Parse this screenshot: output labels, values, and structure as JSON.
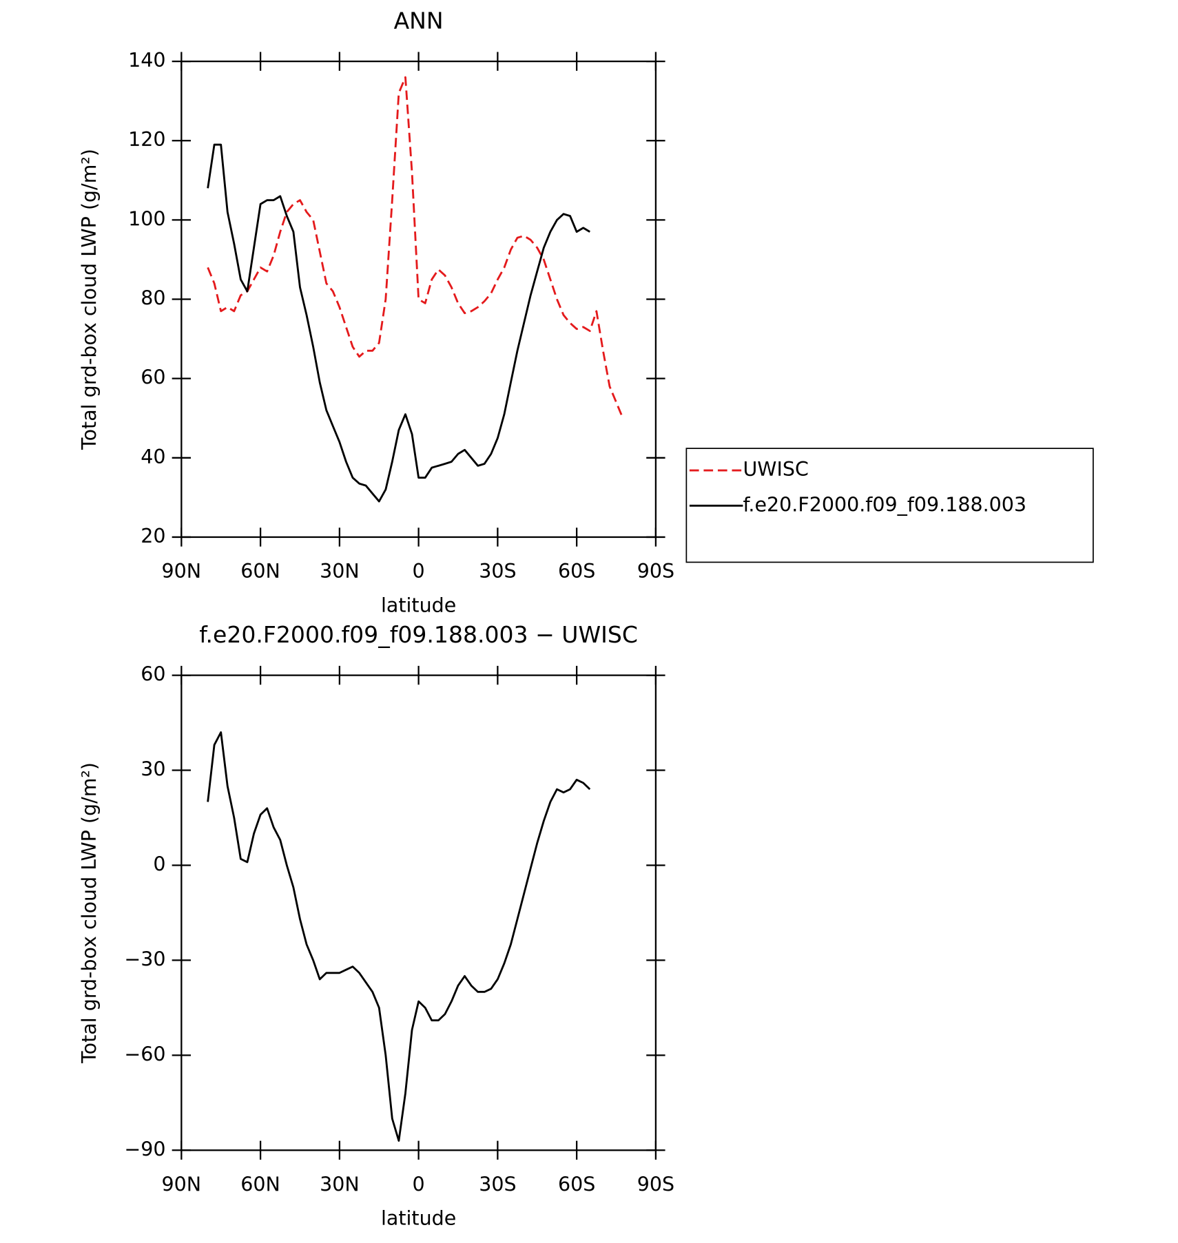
{
  "chart_data": [
    {
      "type": "line",
      "title": "ANN",
      "xlabel": "latitude",
      "ylabel": "Total grd-box cloud LWP (g/m²)",
      "xlim": [
        90,
        -90
      ],
      "ylim": [
        20,
        140
      ],
      "xticks": [
        {
          "value": 90,
          "label": "90N"
        },
        {
          "value": 60,
          "label": "60N"
        },
        {
          "value": 30,
          "label": "30N"
        },
        0,
        {
          "value": -30,
          "label": "30S"
        },
        {
          "value": -60,
          "label": "60S"
        },
        {
          "value": -90,
          "label": "90S"
        }
      ],
      "yticks": [
        20,
        40,
        60,
        80,
        100,
        120,
        140
      ],
      "legend": "right",
      "x": [
        80,
        77.5,
        75,
        72.5,
        70,
        67.5,
        65,
        62.5,
        60,
        57.5,
        55,
        52.5,
        50,
        47.5,
        45,
        42.5,
        40,
        37.5,
        35,
        32.5,
        30,
        27.5,
        25,
        22.5,
        20,
        17.5,
        15,
        12.5,
        10,
        7.5,
        5,
        2.5,
        0,
        -2.5,
        -5,
        -7.5,
        -10,
        -12.5,
        -15,
        -17.5,
        -20,
        -22.5,
        -25,
        -27.5,
        -30,
        -32.5,
        -35,
        -37.5,
        -40,
        -42.5,
        -45,
        -47.5,
        -50,
        -52.5,
        -55,
        -57.5,
        -60,
        -62.5,
        -65,
        -67.5,
        -70,
        -72.5,
        -75,
        -77.5
      ],
      "series": [
        {
          "name": "UWISC",
          "color": "#e41a1c",
          "line_style": "dashed",
          "values": [
            88,
            84,
            77,
            78,
            77,
            81,
            82,
            85,
            88,
            87,
            91,
            97,
            102,
            104,
            105,
            102,
            100,
            92,
            84,
            82,
            78,
            73,
            68,
            65.5,
            67,
            67,
            69,
            80,
            105,
            132,
            136,
            112,
            80,
            79,
            85,
            87.5,
            86,
            83,
            79,
            76.5,
            77,
            78,
            79.5,
            81.5,
            85,
            88,
            92.5,
            95.5,
            96,
            95,
            93,
            90,
            85,
            80,
            76,
            74,
            72.5,
            73,
            72,
            77,
            67,
            58,
            54,
            50
          ]
        },
        {
          "name": "f.e20.F2000.f09_f09.188.003",
          "color": "#000000",
          "line_style": "solid",
          "values": [
            108,
            119,
            119,
            102,
            94,
            85,
            82,
            93,
            104,
            105,
            105,
            106,
            101,
            97,
            83,
            76,
            68,
            59,
            52,
            48,
            44,
            39,
            35,
            33.5,
            33,
            31,
            29,
            32,
            39,
            47,
            51,
            46,
            35,
            35,
            37.5,
            38,
            38.5,
            39,
            41,
            42,
            40,
            38,
            38.5,
            41,
            45,
            51,
            59,
            67,
            74,
            81,
            87,
            93,
            97,
            100,
            101.5,
            101,
            97,
            98,
            97,
            null,
            null,
            null,
            null,
            null
          ]
        }
      ]
    },
    {
      "type": "line",
      "title": "f.e20.F2000.f09_f09.188.003 − UWISC",
      "xlabel": "latitude",
      "ylabel": "Total grd-box cloud LWP (g/m²)",
      "xlim": [
        90,
        -90
      ],
      "ylim": [
        -90,
        60
      ],
      "xticks": [
        {
          "value": 90,
          "label": "90N"
        },
        {
          "value": 60,
          "label": "60N"
        },
        {
          "value": 30,
          "label": "30N"
        },
        0,
        {
          "value": -30,
          "label": "30S"
        },
        {
          "value": -60,
          "label": "60S"
        },
        {
          "value": -90,
          "label": "90S"
        }
      ],
      "yticks": [
        {
          "value": -90,
          "label": "−90"
        },
        {
          "value": -60,
          "label": "−60"
        },
        {
          "value": -30,
          "label": "−30"
        },
        0,
        30,
        60
      ],
      "x": [
        80,
        77.5,
        75,
        72.5,
        70,
        67.5,
        65,
        62.5,
        60,
        57.5,
        55,
        52.5,
        50,
        47.5,
        45,
        42.5,
        40,
        37.5,
        35,
        32.5,
        30,
        27.5,
        25,
        22.5,
        20,
        17.5,
        15,
        12.5,
        10,
        7.5,
        5,
        2.5,
        0,
        -2.5,
        -5,
        -7.5,
        -10,
        -12.5,
        -15,
        -17.5,
        -20,
        -22.5,
        -25,
        -27.5,
        -30,
        -32.5,
        -35,
        -37.5,
        -40,
        -42.5,
        -45,
        -47.5,
        -50,
        -52.5,
        -55,
        -57.5,
        -60,
        -62.5,
        -65
      ],
      "series": [
        {
          "color": "#000000",
          "line_style": "solid",
          "values": [
            20,
            38,
            42,
            25,
            15,
            2,
            1,
            10,
            16,
            18,
            12,
            8,
            0,
            -7,
            -17,
            -25,
            -30,
            -36,
            -34,
            -34,
            -34,
            -33,
            -32,
            -34,
            -37,
            -40,
            -45,
            -60,
            -80,
            -87,
            -72,
            -52,
            -43,
            -45,
            -49,
            -49,
            -47,
            -43,
            -38,
            -35,
            -38,
            -40,
            -40,
            -39,
            -36,
            -31,
            -25,
            -17,
            -9,
            -1,
            7,
            14,
            20,
            24,
            23,
            24,
            27,
            26,
            24
          ]
        }
      ]
    }
  ]
}
